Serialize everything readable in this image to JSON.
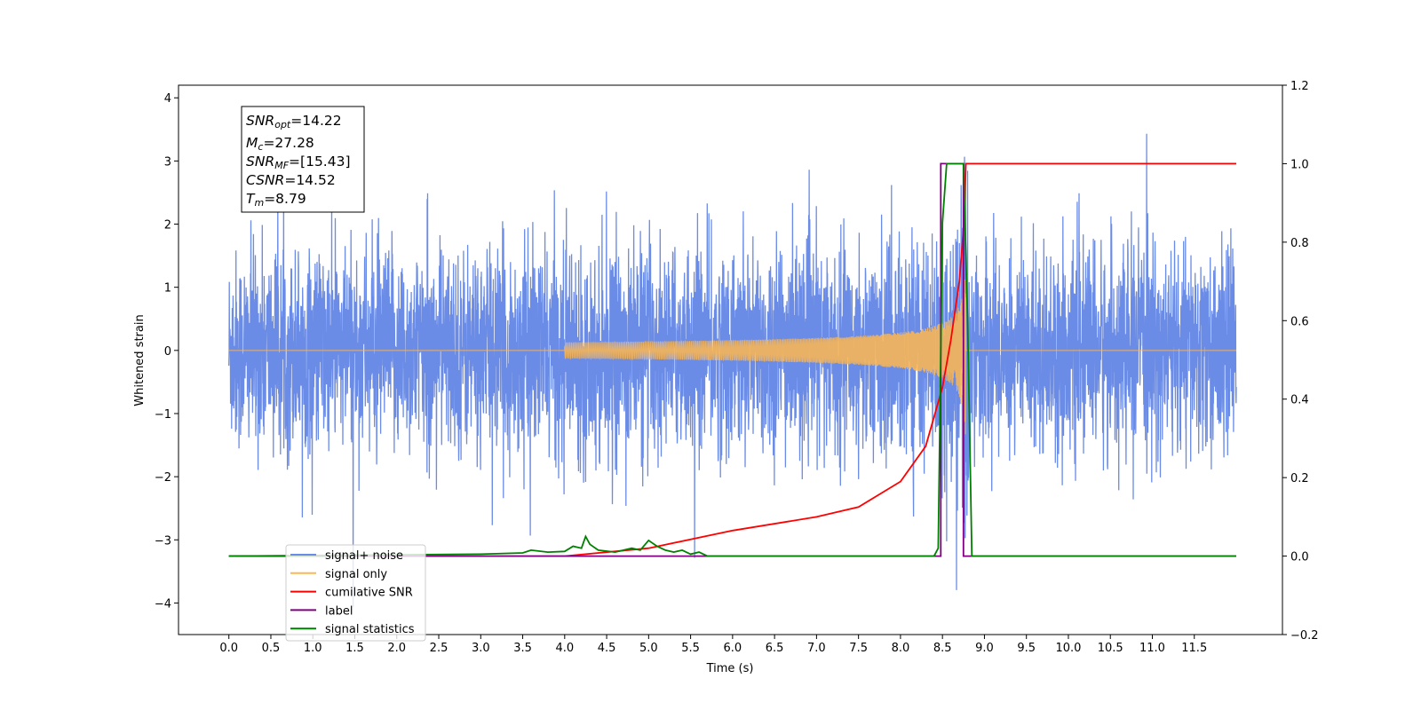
{
  "chart_data": {
    "type": "line",
    "xlabel": "Time (s)",
    "ylabel": "Whitened strain",
    "xlim": [
      -0.6,
      12.55
    ],
    "ylim": [
      -4.5,
      4.2
    ],
    "y2lim": [
      -0.2,
      1.2
    ],
    "grid": false,
    "legend_position": "lower-left",
    "x_ticks": [
      "0.0",
      "0.5",
      "1.0",
      "1.5",
      "2.0",
      "2.5",
      "3.0",
      "3.5",
      "4.0",
      "4.5",
      "5.0",
      "5.5",
      "6.0",
      "6.5",
      "7.0",
      "7.5",
      "8.0",
      "8.5",
      "9.0",
      "9.5",
      "10.0",
      "10.5",
      "11.0",
      "11.5"
    ],
    "y_ticks": [
      "4",
      "3",
      "2",
      "1",
      "0",
      "−1",
      "−2",
      "−3",
      "−4"
    ],
    "y2_ticks": [
      "1.2",
      "1.0",
      "0.8",
      "0.6",
      "0.4",
      "0.2",
      "0.0",
      "−0.2"
    ],
    "annotation": [
      {
        "symbol": "SNR",
        "sub": "opt",
        "value": "=14.22"
      },
      {
        "symbol": "M",
        "sub": "c",
        "value": "=27.28"
      },
      {
        "symbol": "SNR",
        "sub": "MF",
        "value": "=[15.43]"
      },
      {
        "symbol": "CSNR",
        "sub": "",
        "value": "=14.52"
      },
      {
        "symbol": "T",
        "sub": "m",
        "value": "=8.79"
      }
    ],
    "colors": {
      "noise": "#6b8ce6",
      "signal": "#ffb74d",
      "csnr": "#ff0000",
      "label": "#800080",
      "stats": "#008000"
    },
    "series": [
      {
        "name": "signal+ noise",
        "axis": "left",
        "note": "whitened strain, range approx -4.1 to 3.8, noise std ~0.8, x from 0.0 to 12.0 s"
      },
      {
        "name": "signal only",
        "axis": "left",
        "chirp_start": 4.0,
        "merger": 8.78,
        "peak_amplitude": 1.5
      },
      {
        "name": "cumilative SNR",
        "axis": "right",
        "x": [
          0.0,
          4.0,
          5.0,
          6.0,
          7.0,
          7.5,
          8.0,
          8.3,
          8.5,
          8.6,
          8.7,
          8.75,
          8.78,
          12.0
        ],
        "y": [
          0.0,
          0.0,
          0.02,
          0.065,
          0.1,
          0.125,
          0.19,
          0.28,
          0.43,
          0.55,
          0.7,
          0.83,
          1.0,
          1.0
        ]
      },
      {
        "name": "label",
        "axis": "right",
        "x": [
          0.0,
          8.48,
          8.48,
          8.75,
          8.75,
          12.0
        ],
        "y": [
          0.0,
          0.0,
          1.0,
          1.0,
          0.0,
          0.0
        ]
      },
      {
        "name": "signal statistics",
        "axis": "right",
        "x": [
          0.0,
          3.0,
          3.5,
          3.6,
          3.8,
          4.0,
          4.1,
          4.2,
          4.25,
          4.3,
          4.4,
          4.6,
          4.8,
          4.9,
          5.0,
          5.1,
          5.2,
          5.3,
          5.4,
          5.5,
          5.6,
          5.7,
          8.4,
          8.45,
          8.5,
          8.55,
          8.6,
          8.7,
          8.75,
          8.8,
          8.85,
          12.0
        ],
        "y": [
          0.0,
          0.005,
          0.008,
          0.015,
          0.01,
          0.012,
          0.025,
          0.02,
          0.05,
          0.03,
          0.015,
          0.01,
          0.02,
          0.015,
          0.04,
          0.025,
          0.015,
          0.01,
          0.015,
          0.005,
          0.01,
          0.0,
          0.0,
          0.02,
          0.85,
          1.0,
          1.0,
          1.0,
          1.0,
          0.6,
          0.0,
          0.0
        ]
      }
    ],
    "legend": [
      {
        "label": "signal+ noise",
        "color": "#6b8ce6"
      },
      {
        "label": "signal only",
        "color": "#ffb74d"
      },
      {
        "label": "cumilative SNR",
        "color": "#ff0000"
      },
      {
        "label": "label",
        "color": "#800080"
      },
      {
        "label": "signal statistics",
        "color": "#008000"
      }
    ]
  }
}
